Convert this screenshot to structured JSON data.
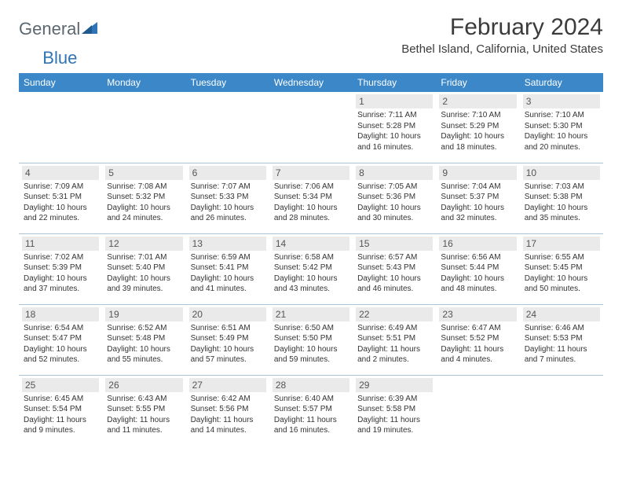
{
  "logo": {
    "text1": "General",
    "text2": "Blue"
  },
  "title": "February 2024",
  "location": "Bethel Island, California, United States",
  "colors": {
    "header_bg": "#3b87c8",
    "header_text": "#ffffff",
    "daynum_bg": "#eaeaea",
    "row_border": "#a9c3d9",
    "logo_gray": "#5c6770",
    "logo_blue": "#2f75b5"
  },
  "weekdays": [
    "Sunday",
    "Monday",
    "Tuesday",
    "Wednesday",
    "Thursday",
    "Friday",
    "Saturday"
  ],
  "weeks": [
    [
      null,
      null,
      null,
      null,
      {
        "n": "1",
        "sr": "7:11 AM",
        "ss": "5:28 PM",
        "dl": "10 hours and 16 minutes."
      },
      {
        "n": "2",
        "sr": "7:10 AM",
        "ss": "5:29 PM",
        "dl": "10 hours and 18 minutes."
      },
      {
        "n": "3",
        "sr": "7:10 AM",
        "ss": "5:30 PM",
        "dl": "10 hours and 20 minutes."
      }
    ],
    [
      {
        "n": "4",
        "sr": "7:09 AM",
        "ss": "5:31 PM",
        "dl": "10 hours and 22 minutes."
      },
      {
        "n": "5",
        "sr": "7:08 AM",
        "ss": "5:32 PM",
        "dl": "10 hours and 24 minutes."
      },
      {
        "n": "6",
        "sr": "7:07 AM",
        "ss": "5:33 PM",
        "dl": "10 hours and 26 minutes."
      },
      {
        "n": "7",
        "sr": "7:06 AM",
        "ss": "5:34 PM",
        "dl": "10 hours and 28 minutes."
      },
      {
        "n": "8",
        "sr": "7:05 AM",
        "ss": "5:36 PM",
        "dl": "10 hours and 30 minutes."
      },
      {
        "n": "9",
        "sr": "7:04 AM",
        "ss": "5:37 PM",
        "dl": "10 hours and 32 minutes."
      },
      {
        "n": "10",
        "sr": "7:03 AM",
        "ss": "5:38 PM",
        "dl": "10 hours and 35 minutes."
      }
    ],
    [
      {
        "n": "11",
        "sr": "7:02 AM",
        "ss": "5:39 PM",
        "dl": "10 hours and 37 minutes."
      },
      {
        "n": "12",
        "sr": "7:01 AM",
        "ss": "5:40 PM",
        "dl": "10 hours and 39 minutes."
      },
      {
        "n": "13",
        "sr": "6:59 AM",
        "ss": "5:41 PM",
        "dl": "10 hours and 41 minutes."
      },
      {
        "n": "14",
        "sr": "6:58 AM",
        "ss": "5:42 PM",
        "dl": "10 hours and 43 minutes."
      },
      {
        "n": "15",
        "sr": "6:57 AM",
        "ss": "5:43 PM",
        "dl": "10 hours and 46 minutes."
      },
      {
        "n": "16",
        "sr": "6:56 AM",
        "ss": "5:44 PM",
        "dl": "10 hours and 48 minutes."
      },
      {
        "n": "17",
        "sr": "6:55 AM",
        "ss": "5:45 PM",
        "dl": "10 hours and 50 minutes."
      }
    ],
    [
      {
        "n": "18",
        "sr": "6:54 AM",
        "ss": "5:47 PM",
        "dl": "10 hours and 52 minutes."
      },
      {
        "n": "19",
        "sr": "6:52 AM",
        "ss": "5:48 PM",
        "dl": "10 hours and 55 minutes."
      },
      {
        "n": "20",
        "sr": "6:51 AM",
        "ss": "5:49 PM",
        "dl": "10 hours and 57 minutes."
      },
      {
        "n": "21",
        "sr": "6:50 AM",
        "ss": "5:50 PM",
        "dl": "10 hours and 59 minutes."
      },
      {
        "n": "22",
        "sr": "6:49 AM",
        "ss": "5:51 PM",
        "dl": "11 hours and 2 minutes."
      },
      {
        "n": "23",
        "sr": "6:47 AM",
        "ss": "5:52 PM",
        "dl": "11 hours and 4 minutes."
      },
      {
        "n": "24",
        "sr": "6:46 AM",
        "ss": "5:53 PM",
        "dl": "11 hours and 7 minutes."
      }
    ],
    [
      {
        "n": "25",
        "sr": "6:45 AM",
        "ss": "5:54 PM",
        "dl": "11 hours and 9 minutes."
      },
      {
        "n": "26",
        "sr": "6:43 AM",
        "ss": "5:55 PM",
        "dl": "11 hours and 11 minutes."
      },
      {
        "n": "27",
        "sr": "6:42 AM",
        "ss": "5:56 PM",
        "dl": "11 hours and 14 minutes."
      },
      {
        "n": "28",
        "sr": "6:40 AM",
        "ss": "5:57 PM",
        "dl": "11 hours and 16 minutes."
      },
      {
        "n": "29",
        "sr": "6:39 AM",
        "ss": "5:58 PM",
        "dl": "11 hours and 19 minutes."
      },
      null,
      null
    ]
  ],
  "labels": {
    "sunrise": "Sunrise:",
    "sunset": "Sunset:",
    "daylight": "Daylight:"
  }
}
